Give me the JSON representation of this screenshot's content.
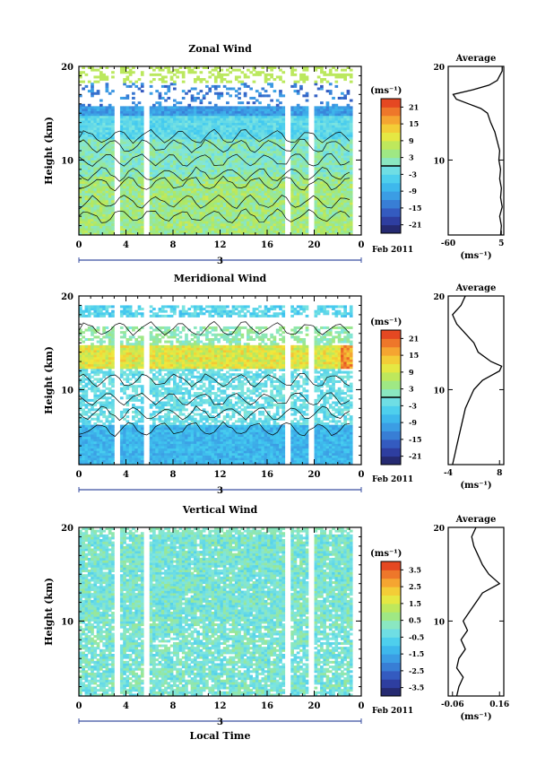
{
  "chart_data": [
    {
      "type": "heatmap",
      "title": "Zonal Wind",
      "ylabel": "Height (km)",
      "xlabel": "",
      "xlim": [
        0,
        24
      ],
      "ylim": [
        2,
        20
      ],
      "x_ticks": [
        "0",
        "4",
        "8",
        "12",
        "16",
        "20",
        "0"
      ],
      "y_ticks": [
        "20",
        "10"
      ],
      "date_label": "3",
      "date_suffix": "Feb 2011",
      "colorbar": {
        "unit": "(ms⁻¹)",
        "ticks": [
          "21",
          "15",
          "9",
          "3",
          "-3",
          "-9",
          "-15",
          "-21"
        ],
        "range": [
          -24,
          24
        ],
        "contour_level": 0
      },
      "average": {
        "title": "Average",
        "xlabel": "(ms⁻¹)",
        "x_ticks": [
          "-60",
          "5"
        ],
        "xlim": [
          -60,
          8
        ],
        "y_ticks": [
          "20",
          "10"
        ],
        "height": [
          2,
          3,
          4,
          5,
          6,
          7,
          8,
          9,
          10,
          11,
          12,
          13,
          14,
          15,
          15.5,
          16,
          16.5,
          17,
          17.5,
          18,
          18.5,
          19,
          19.5,
          20
        ],
        "value": [
          4,
          5,
          3,
          6,
          4,
          5,
          3,
          4,
          2,
          3,
          0,
          -3,
          -8,
          -12,
          -20,
          -35,
          -50,
          -54,
          -30,
          -10,
          0,
          3,
          6,
          6
        ]
      }
    },
    {
      "type": "heatmap",
      "title": "Meridional Wind",
      "ylabel": "Height (km)",
      "xlabel": "",
      "xlim": [
        0,
        24
      ],
      "ylim": [
        2,
        20
      ],
      "x_ticks": [
        "0",
        "4",
        "8",
        "12",
        "16",
        "20",
        "0"
      ],
      "y_ticks": [
        "20",
        "10"
      ],
      "date_label": "3",
      "date_suffix": "Feb 2011",
      "colorbar": {
        "unit": "(ms⁻¹)",
        "ticks": [
          "21",
          "15",
          "9",
          "3",
          "-3",
          "-9",
          "-15",
          "-21"
        ],
        "range": [
          -24,
          24
        ],
        "contour_level": 0
      },
      "average": {
        "title": "Average",
        "xlabel": "(ms⁻¹)",
        "x_ticks": [
          "-4",
          "8"
        ],
        "xlim": [
          -4,
          9
        ],
        "y_ticks": [
          "20",
          "10"
        ],
        "height": [
          2,
          3,
          4,
          5,
          6,
          7,
          8,
          9,
          10,
          11,
          11.5,
          12,
          12.5,
          13,
          14,
          15,
          16,
          17,
          18,
          19,
          20
        ],
        "value": [
          -3,
          -2.5,
          -2,
          -1.5,
          -1,
          -0.5,
          0,
          1,
          2,
          4,
          6,
          8,
          8.5,
          6,
          3,
          2,
          0,
          -2,
          -3,
          -1,
          0
        ]
      }
    },
    {
      "type": "heatmap",
      "title": "Vertical Wind",
      "ylabel": "Height (km)",
      "xlabel": "Local Time",
      "xlim": [
        0,
        24
      ],
      "ylim": [
        2,
        20
      ],
      "x_ticks": [
        "0",
        "4",
        "8",
        "12",
        "16",
        "20",
        "0"
      ],
      "y_ticks": [
        "20",
        "10"
      ],
      "date_label": "3",
      "date_suffix": "Feb 2011",
      "colorbar": {
        "unit": "(ms⁻¹)",
        "ticks": [
          "3.5",
          "2.5",
          "1.5",
          "0.5",
          "-0.5",
          "-1.5",
          "-2.5",
          "-3.5"
        ],
        "range": [
          -4,
          4
        ],
        "contour_level": null
      },
      "average": {
        "title": "Average",
        "xlabel": "(ms⁻¹)",
        "x_ticks": [
          "-0.06",
          "0.16"
        ],
        "xlim": [
          -0.08,
          0.18
        ],
        "y_ticks": [
          "20",
          "10"
        ],
        "height": [
          2,
          3,
          4,
          5,
          6,
          7,
          8,
          9,
          10,
          11,
          12,
          13,
          14,
          15,
          16,
          17,
          18,
          19,
          20
        ],
        "value": [
          -0.04,
          -0.03,
          -0.01,
          -0.04,
          -0.03,
          0.0,
          -0.02,
          0.01,
          -0.01,
          0.02,
          0.05,
          0.08,
          0.16,
          0.11,
          0.08,
          0.06,
          0.04,
          0.03,
          0.05
        ]
      }
    }
  ]
}
